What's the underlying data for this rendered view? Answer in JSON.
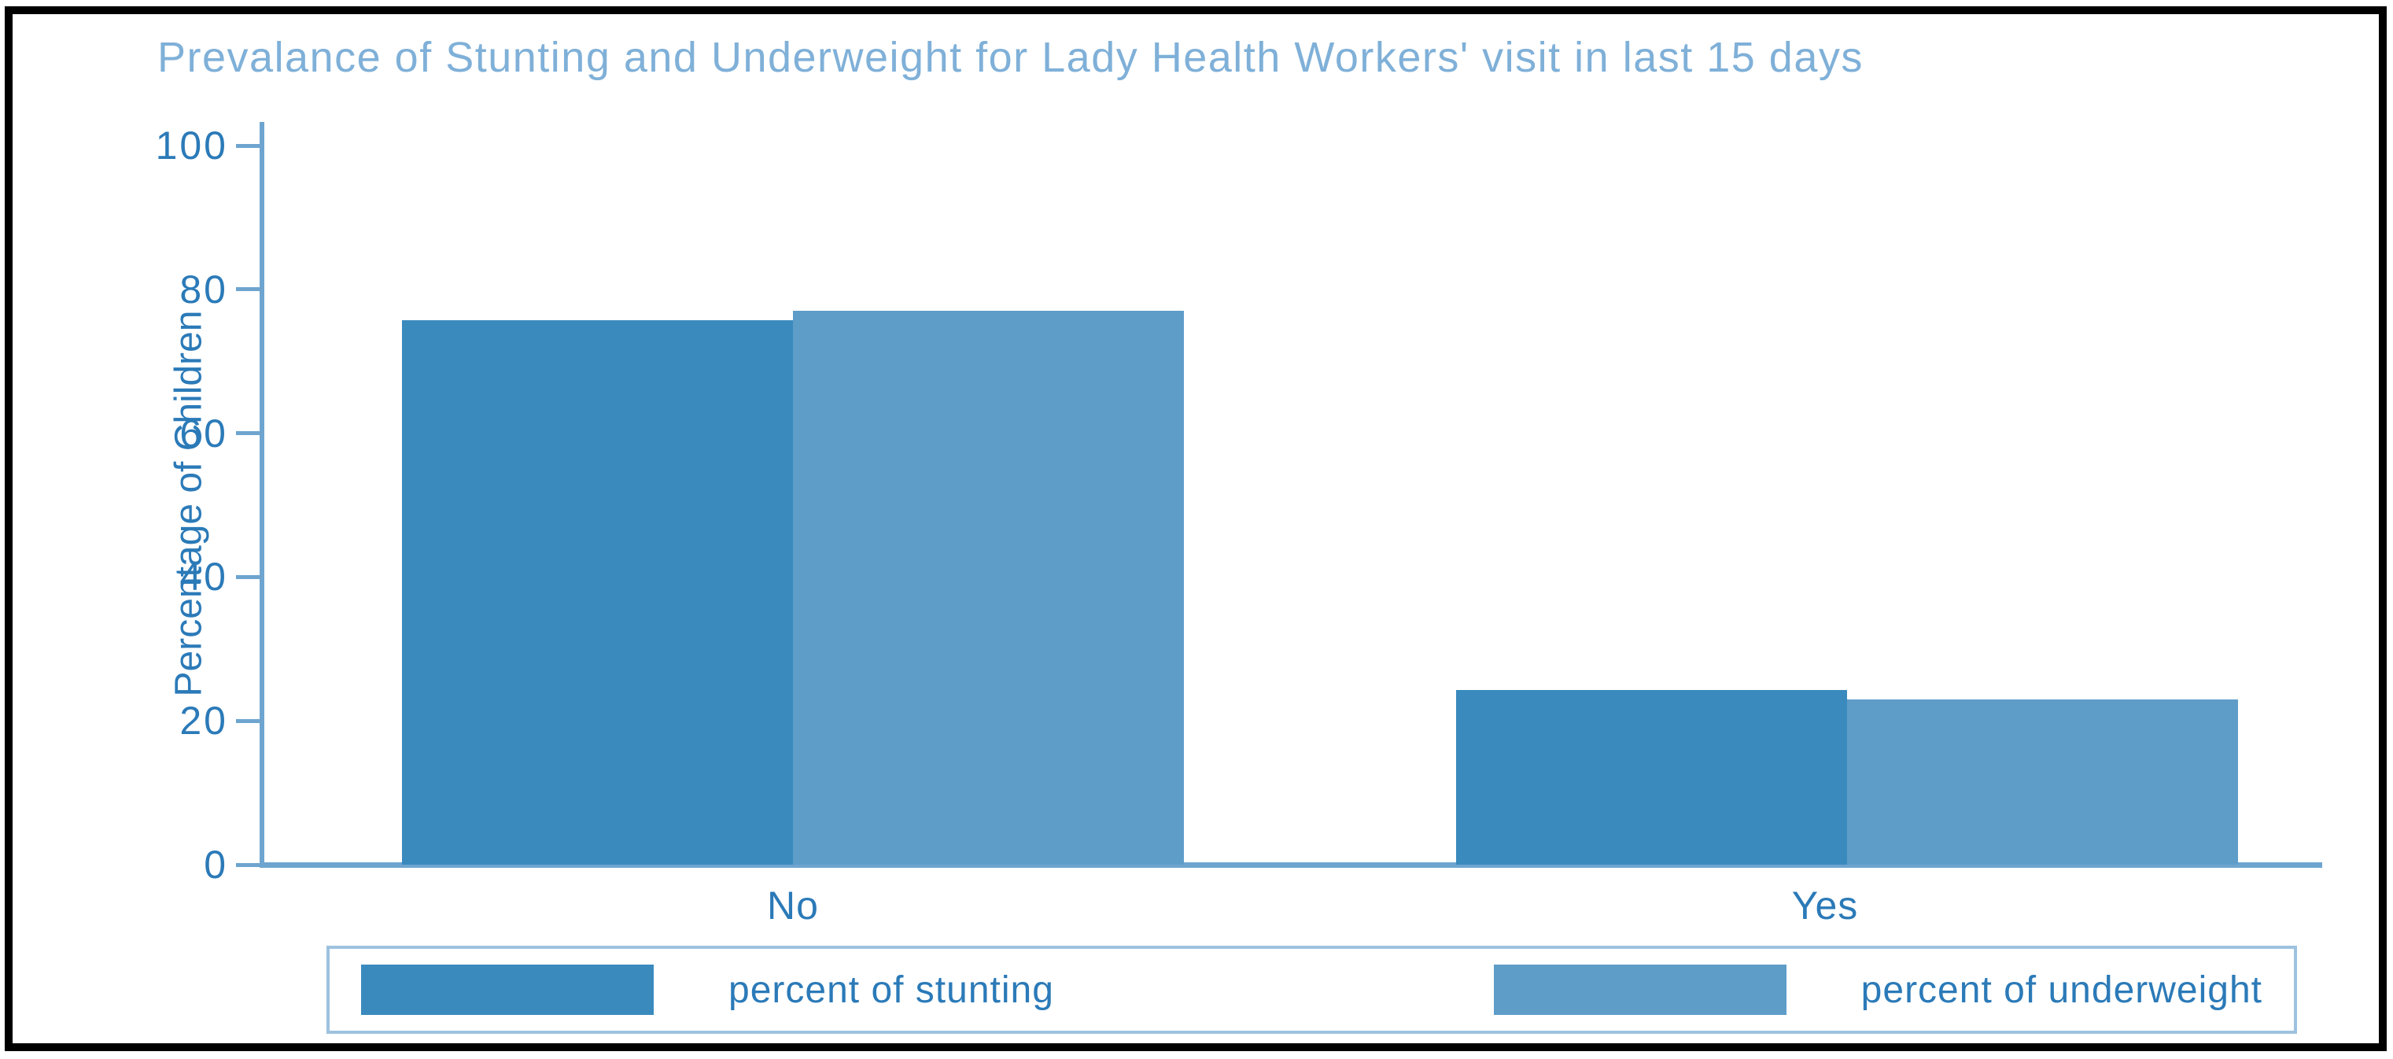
{
  "title": "Prevalance of Stunting and Underweight for Lady Health Workers' visit in last 15 days",
  "chart_data": {
    "type": "bar",
    "title": "Prevalance of Stunting and Underweight for Lady Health Workers' visit in last 15 days",
    "categories": [
      "No",
      "Yes"
    ],
    "series": [
      {
        "name": "percent of stunting",
        "color": "#3a8abe",
        "values": [
          75.7,
          24.3
        ]
      },
      {
        "name": "percent of underweight",
        "color": "#5f9dc9",
        "values": [
          77.0,
          23.0
        ]
      }
    ],
    "xlabel": "",
    "ylabel": "Percentage of Children",
    "ylim": [
      0,
      100
    ],
    "yticks": [
      0,
      20,
      40,
      60,
      80,
      100
    ],
    "grid": false,
    "legend_position": "bottom"
  },
  "colors": {
    "title_text": "#7fb0d8",
    "axis_text": "#2b7ab8",
    "axis_line": "#6ea5d0",
    "legend_border": "#9dc2e0",
    "frame": "#000000",
    "background": "#ffffff"
  }
}
